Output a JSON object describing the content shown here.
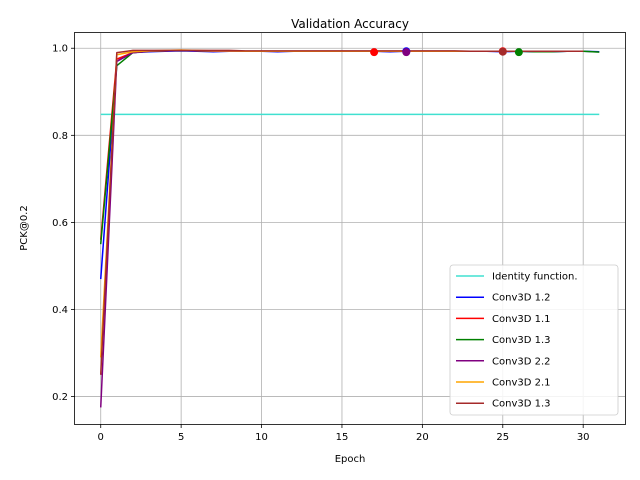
{
  "chart_data": {
    "type": "line",
    "title": "Validation Accuracy",
    "xlabel": "Epoch",
    "ylabel": "PCK@0.2",
    "xlim": [
      -1.6,
      32.6
    ],
    "ylim": [
      0.137,
      1.035
    ],
    "xticks": [
      0,
      5,
      10,
      15,
      20,
      25,
      30
    ],
    "yticks": [
      0.2,
      0.4,
      0.6,
      0.8,
      1.0
    ],
    "ytick_labels": [
      "0.2",
      "0.4",
      "0.6",
      "0.8",
      "1.0"
    ],
    "grid": true,
    "legend_position": "lower-right",
    "series": [
      {
        "name": "Identity function.",
        "color": "#40e0d0",
        "x": [
          0,
          31
        ],
        "y": [
          0.848,
          0.848
        ]
      },
      {
        "name": "Conv3D 1.2",
        "color": "#0000ff",
        "x": [
          0,
          1,
          2,
          3,
          4,
          5,
          6,
          7,
          8,
          9,
          10,
          11,
          12,
          13,
          14,
          15,
          16,
          17,
          18,
          19,
          20,
          21,
          22,
          23,
          24,
          25,
          26,
          27,
          28,
          29,
          30,
          31
        ],
        "y": [
          0.47,
          0.97,
          0.99,
          0.992,
          0.993,
          0.994,
          0.993,
          0.992,
          0.993,
          0.993,
          0.993,
          0.992,
          0.993,
          0.993,
          0.993,
          0.993,
          0.993,
          0.993,
          0.992,
          0.993,
          0.993,
          0.993,
          0.993,
          0.993,
          0.993,
          0.992,
          0.993,
          0.992,
          0.992,
          0.993,
          0.993,
          0.992
        ]
      },
      {
        "name": "Conv3D 1.1",
        "color": "#ff0000",
        "x": [
          0,
          1,
          2,
          3,
          4,
          5,
          6,
          7,
          8,
          9,
          10,
          11,
          12,
          13,
          14,
          15,
          16,
          17,
          18,
          19,
          20,
          21,
          22,
          23,
          24,
          25,
          26,
          27,
          28,
          29,
          30
        ],
        "y": [
          0.56,
          0.975,
          0.99,
          0.993,
          0.994,
          0.995,
          0.994,
          0.994,
          0.993,
          0.993,
          0.993,
          0.993,
          0.993,
          0.993,
          0.993,
          0.993,
          0.993,
          0.993,
          0.993,
          0.993,
          0.993,
          0.993,
          0.993,
          0.993,
          0.993,
          0.993,
          0.993,
          0.993,
          0.993,
          0.993,
          0.993
        ]
      },
      {
        "name": "Conv3D 1.3",
        "color": "#008000",
        "x": [
          0,
          1,
          2,
          3,
          4,
          5,
          6,
          7,
          8,
          9,
          10,
          11,
          12,
          13,
          14,
          15,
          16,
          17,
          18,
          19,
          20,
          21,
          22,
          23,
          24,
          25,
          26,
          27,
          28,
          29,
          30,
          31
        ],
        "y": [
          0.55,
          0.96,
          0.99,
          0.993,
          0.994,
          0.995,
          0.994,
          0.993,
          0.993,
          0.993,
          0.993,
          0.993,
          0.993,
          0.993,
          0.993,
          0.993,
          0.993,
          0.993,
          0.993,
          0.993,
          0.993,
          0.993,
          0.993,
          0.993,
          0.993,
          0.993,
          0.993,
          0.992,
          0.992,
          0.993,
          0.993,
          0.991
        ]
      },
      {
        "name": "Conv3D 2.2",
        "color": "#800080",
        "x": [
          0,
          1,
          2,
          3,
          4,
          5,
          6,
          7,
          8,
          9,
          10,
          11,
          12,
          13,
          14,
          15,
          16,
          17,
          18,
          19,
          20,
          21,
          22,
          23,
          24,
          25,
          26,
          27,
          28,
          29,
          30
        ],
        "y": [
          0.175,
          0.97,
          0.99,
          0.993,
          0.994,
          0.995,
          0.994,
          0.993,
          0.993,
          0.993,
          0.993,
          0.993,
          0.993,
          0.993,
          0.993,
          0.993,
          0.993,
          0.993,
          0.993,
          0.993,
          0.993,
          0.993,
          0.993,
          0.993,
          0.993,
          0.993,
          0.993,
          0.993,
          0.993,
          0.993,
          0.993
        ]
      },
      {
        "name": "Conv3D 2.1",
        "color": "#ffa500",
        "x": [
          0,
          1,
          2,
          3,
          4,
          5,
          6,
          7,
          8,
          9,
          10,
          11,
          12,
          13,
          14,
          15,
          16,
          17,
          18,
          19,
          20,
          21,
          22,
          23,
          24,
          25,
          26,
          27,
          28,
          29,
          30
        ],
        "y": [
          0.29,
          0.985,
          0.992,
          0.994,
          0.995,
          0.996,
          0.995,
          0.994,
          0.994,
          0.993,
          0.993,
          0.993,
          0.993,
          0.993,
          0.993,
          0.993,
          0.993,
          0.993,
          0.993,
          0.993,
          0.993,
          0.993,
          0.993,
          0.993,
          0.993,
          0.993,
          0.993,
          0.993,
          0.993,
          0.993,
          0.993
        ]
      },
      {
        "name": "Conv3D 1.3",
        "color": "#a52a2a",
        "x": [
          0,
          1,
          2,
          3,
          4,
          5,
          6,
          7,
          8,
          9,
          10,
          11,
          12,
          13,
          14,
          15,
          16,
          17,
          18,
          19,
          20,
          21,
          22,
          23,
          24,
          25,
          26,
          27,
          28,
          29,
          30
        ],
        "y": [
          0.25,
          0.99,
          0.995,
          0.995,
          0.995,
          0.995,
          0.995,
          0.995,
          0.995,
          0.994,
          0.994,
          0.994,
          0.994,
          0.994,
          0.994,
          0.994,
          0.994,
          0.994,
          0.994,
          0.994,
          0.994,
          0.994,
          0.994,
          0.993,
          0.993,
          0.993,
          0.993,
          0.993,
          0.993,
          0.993,
          0.993
        ]
      }
    ],
    "markers": [
      {
        "x": 17,
        "y": 0.991,
        "color": "#ff0000"
      },
      {
        "x": 19,
        "y": 0.993,
        "color": "#0000ff"
      },
      {
        "x": 19,
        "y": 0.991,
        "color": "#800080"
      },
      {
        "x": 25,
        "y": 0.993,
        "color": "#ff0000"
      },
      {
        "x": 25,
        "y": 0.992,
        "color": "#a52a2a"
      },
      {
        "x": 26,
        "y": 0.991,
        "color": "#008000"
      }
    ]
  }
}
